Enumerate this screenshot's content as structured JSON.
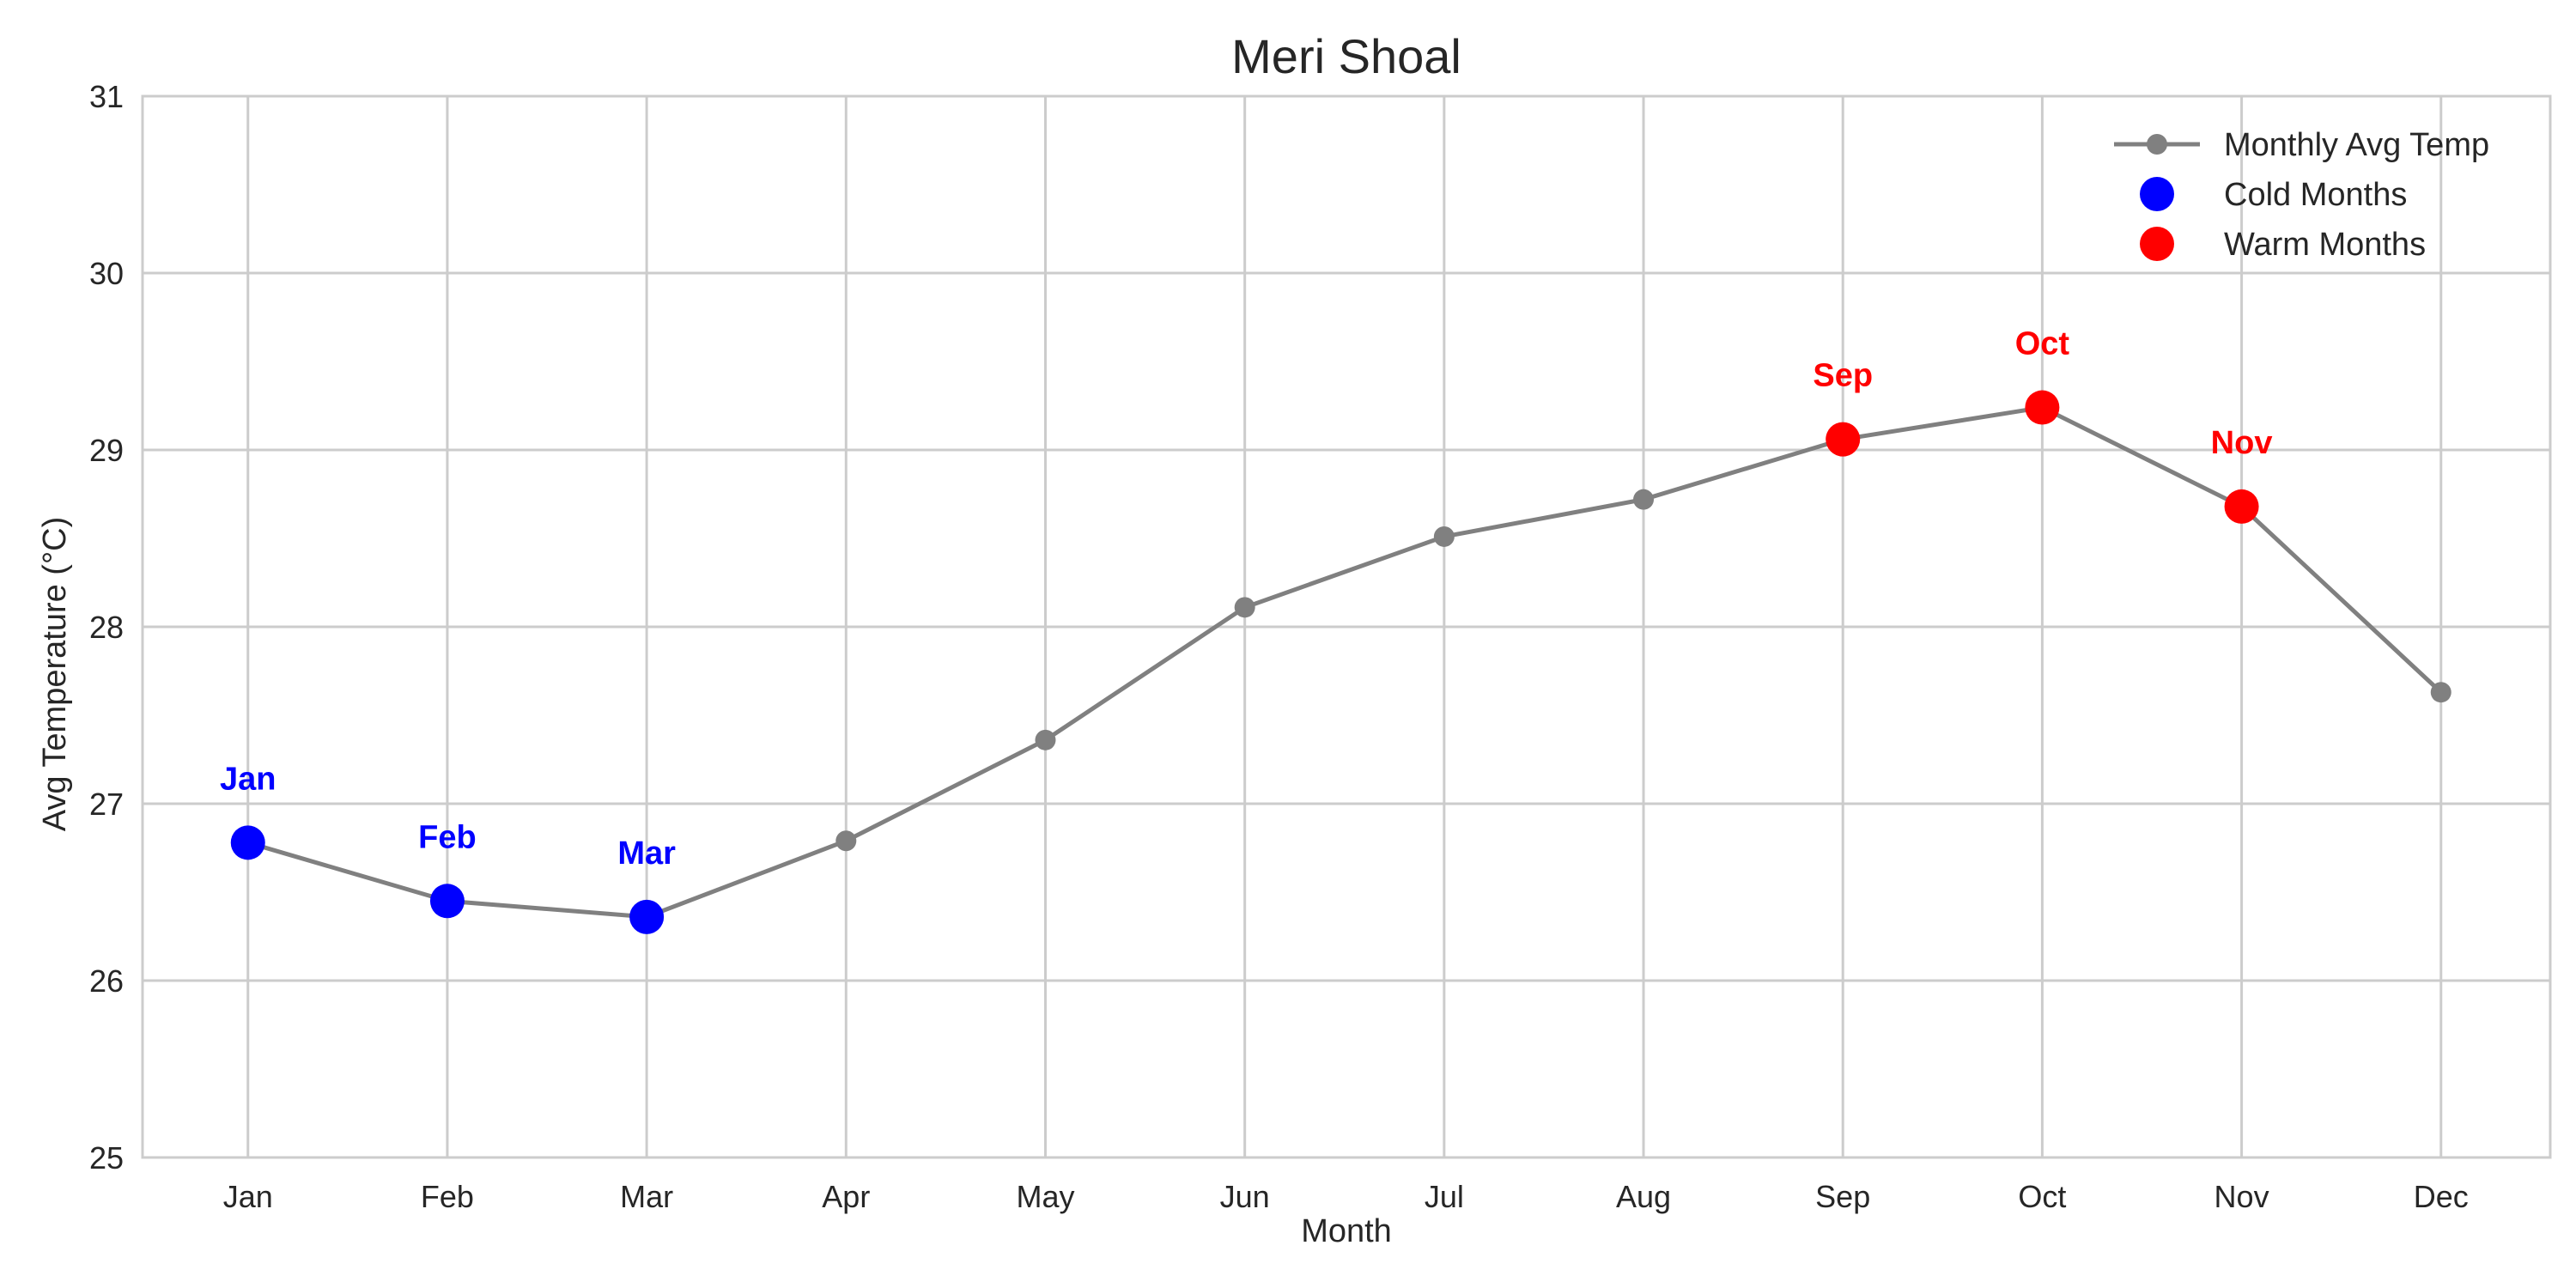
{
  "chart_data": {
    "type": "line",
    "title": "Meri Shoal",
    "xlabel": "Month",
    "ylabel": "Avg Temperature (°C)",
    "categories": [
      "Jan",
      "Feb",
      "Mar",
      "Apr",
      "May",
      "Jun",
      "Jul",
      "Aug",
      "Sep",
      "Oct",
      "Nov",
      "Dec"
    ],
    "ylim": [
      25,
      31
    ],
    "yticks": [
      "25",
      "26",
      "27",
      "28",
      "29",
      "30",
      "31"
    ],
    "grid": true,
    "legend_position": "top-right",
    "series": [
      {
        "name": "Monthly Avg Temp",
        "color": "#808080",
        "values": [
          26.78,
          26.45,
          26.36,
          26.79,
          27.36,
          28.11,
          28.51,
          28.72,
          29.06,
          29.24,
          28.68,
          27.63
        ]
      }
    ],
    "highlights": [
      {
        "name": "Cold Months",
        "color": "#0000ff",
        "months": [
          "Jan",
          "Feb",
          "Mar"
        ],
        "labels": [
          "Jan",
          "Feb",
          "Mar"
        ]
      },
      {
        "name": "Warm Months",
        "color": "#ff0000",
        "months": [
          "Sep",
          "Oct",
          "Nov"
        ],
        "labels": [
          "Sep",
          "Oct",
          "Nov"
        ]
      }
    ]
  }
}
